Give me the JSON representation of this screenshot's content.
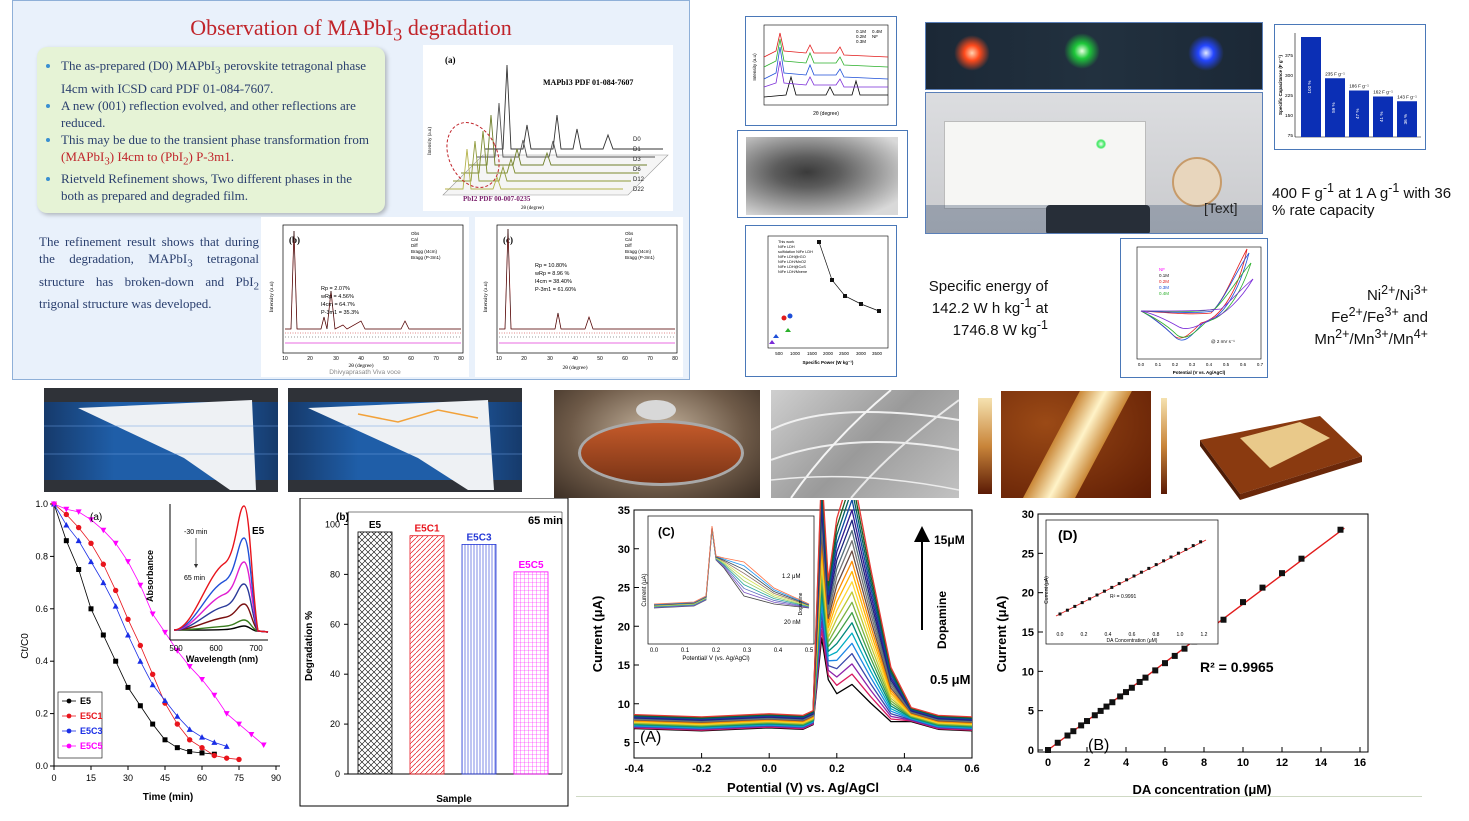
{
  "slide": {
    "title_html": "Observation of MAPbI<sub>3</sub> degradation",
    "bullets_html": [
      "The as-prepared (D0) MAPbI<sub>3</sub> perovskite tetragonal phase I4cm with ICSD card PDF 01-084-7607.",
      "A new (001) reflection evolved, and other reflections are reduced.",
      "This may be due to the transient phase transformation from <span class=\"red\">(MAPbI<sub>3</sub>) I4cm to (PbI<sub>2</sub>) P-3m1</span>.",
      "Rietveld Refinement shows, Two different phases in the both as prepared and degraded film."
    ],
    "paragraph_html": "The refinement result shows that during the degradation, MAPbI<sub>3</sub> tetragonal structure has broken-down and PbI<sub>2</sub> trigonal structure was developed.",
    "xrd_a": {
      "label": "(a)",
      "ref_top": "MAPbI3 PDF 01-084-7607",
      "ref_bottom": "PbI2 PDF 00-007-0235",
      "ylabel": "Intensity (a.u)",
      "xlabel": "2θ (degree)",
      "traces": [
        "D0",
        "D1",
        "D3",
        "D6",
        "D12",
        "D22"
      ]
    },
    "rietveld_b": {
      "label": "(b)",
      "legend": [
        "Obs",
        "Cal",
        "Diff",
        "Bragg (I4cm)",
        "Bragg (P-3m1)"
      ],
      "stats": [
        "Rp = 2.07%",
        "wRp = 4.56%",
        "I4cm = 64.7%",
        "P-3m1 = 35.3%"
      ],
      "xlabel": "2θ (degree)",
      "ylabel": "Intensity (a.u)",
      "xticks": [
        "10",
        "20",
        "30",
        "40",
        "50",
        "60",
        "70",
        "80"
      ],
      "watermark": "Dhivyaprasath Viva voce"
    },
    "rietveld_c": {
      "label": "(c)",
      "legend": [
        "Obs",
        "Cal",
        "Diff",
        "Bragg (I4cm)",
        "Bragg (P-3m1)"
      ],
      "stats": [
        "Rp = 10.80%",
        "wRp = 8.96 %",
        "I4cm = 38.40%",
        "P-3m1 = 61.60%"
      ],
      "xlabel": "2θ (degree)",
      "ylabel": "Intensity (a.u)",
      "xticks": [
        "10",
        "20",
        "30",
        "40",
        "50",
        "60",
        "70",
        "80"
      ]
    }
  },
  "supercap": {
    "text_specific_energy": "Specific energy of 142.2 W h kg<sup>-1</sup> at 1746.8 W kg<sup>-1</sup>",
    "text_capacitance": "400 F g<sup>-1</sup> at 1 A g<sup>-1</sup> with 36 % rate capacity",
    "text_placeholder": "[Text]",
    "text_redox": "Ni<sup>2+</sup>/Ni<sup>3+</sup><br>Fe<sup>2+</sup>/Fe<sup>3+</sup> and<br>Mn<sup>2+</sup>/Mn<sup>3+</sup>/Mn<sup>4+</sup>",
    "bar_chart": {
      "ylabel": "Specific Capacitance (F g⁻¹)",
      "bars": [
        {
          "top": "",
          "pct": "100 %",
          "value": 400
        },
        {
          "top": "235 F g⁻¹",
          "pct": "59 %",
          "value": 235
        },
        {
          "top": "186 F g⁻¹",
          "pct": "47 %",
          "value": 186
        },
        {
          "top": "162 F g⁻¹",
          "pct": "41 %",
          "value": 162
        },
        {
          "top": "143 F g⁻¹",
          "pct": "36 %",
          "value": 143
        }
      ],
      "yticks": [
        "375",
        "300",
        "225",
        "150",
        "75"
      ]
    },
    "ragone": {
      "xlabel": "Specific Power (W kg⁻¹)",
      "xticks": [
        "500",
        "1000",
        "1500",
        "2000",
        "2500",
        "3000",
        "3500"
      ],
      "yticks": [
        "20",
        "40",
        "60",
        "80",
        "100",
        "120",
        "140"
      ],
      "legend": [
        "This work",
        "NiFe LDH",
        "sulfidation NiFe LDH",
        "NiFe LDH@rGO",
        "NiFe LDH/MnO2",
        "NiFe LDH@CoS",
        "NiFe LDH/Mxene"
      ]
    },
    "cv": {
      "legend": [
        "NF",
        "0.1M",
        "0.2M",
        "0.3M",
        "0.4M"
      ],
      "annotation": "@ 2 mV s⁻¹",
      "xlabel": "Potential (V vs. Ag/AgCl)",
      "xticks": [
        "0.0",
        "0.1",
        "0.2",
        "0.3",
        "0.4",
        "0.5",
        "0.6",
        "0.7"
      ]
    },
    "xrd_small": {
      "xlabel": "2θ (degree)",
      "ylabel": "Intensity (a.u)",
      "legend": [
        "0.1M",
        "0.2M",
        "0.3M",
        "0.4M",
        "NF"
      ]
    }
  },
  "degradation_a": {
    "label": "(a)",
    "xlabel": "Time (min)",
    "ylabel": "Ct/C0",
    "xticks": [
      "0",
      "15",
      "30",
      "45",
      "60",
      "75",
      "90"
    ],
    "yticks": [
      "0.0",
      "0.2",
      "0.4",
      "0.6",
      "0.8",
      "1.0"
    ],
    "legend": [
      "E5",
      "E5C1",
      "E5C3",
      "E5C5"
    ],
    "colors": [
      "#000000",
      "#e8141c",
      "#1a2ee6",
      "#ff00ff"
    ],
    "inset": {
      "title": "E5",
      "ylabel": "Absorbance",
      "xlabel": "Wavelength (nm)",
      "xticks": [
        "500",
        "600",
        "700"
      ],
      "arrow_top": "-30 min",
      "arrow_bottom": "65 min"
    }
  },
  "degradation_b": {
    "label": "(b)",
    "annotation": "65 min",
    "xlabel": "Sample",
    "ylabel": "Degradation %",
    "yticks": [
      "0",
      "20",
      "40",
      "60",
      "80",
      "100"
    ],
    "categories": [
      "E5",
      "E5C1",
      "E5C3",
      "E5C5"
    ],
    "values": [
      97,
      95.5,
      92,
      81
    ],
    "colors": [
      "#000000",
      "#e8141c",
      "#2438d6",
      "#ff00ff"
    ]
  },
  "dpv": {
    "label_a": "(A)",
    "label_c": "(C)",
    "xlabel": "Potential (V) vs. Ag/AgCl",
    "ylabel": "Current (μA)",
    "xticks": [
      "-0.4",
      "-0.2",
      "0.0",
      "0.2",
      "0.4",
      "0.6"
    ],
    "yticks": [
      "5",
      "10",
      "15",
      "20",
      "25",
      "30",
      "35"
    ],
    "top_label": "15μM",
    "side_label": "Dopamine",
    "bottom_label": "0.5 μM",
    "inset": {
      "xlabel": "Potential/ V (vs. Ag/AgCl)",
      "ylabel": "Current (μA)",
      "xticks": [
        "0.0",
        "0.1",
        "0.2",
        "0.3",
        "0.4",
        "0.5"
      ],
      "top_label": "1.2 μM",
      "side_label": "Dopamine",
      "bottom_label": "20 nM"
    }
  },
  "calibration": {
    "label_b": "(B)",
    "label_d": "(D)",
    "xlabel": "DA concentration (μM)",
    "ylabel": "Current (μA)",
    "xticks": [
      "0",
      "2",
      "4",
      "6",
      "8",
      "10",
      "12",
      "14",
      "16"
    ],
    "yticks": [
      "0",
      "5",
      "10",
      "15",
      "20",
      "25",
      "30"
    ],
    "r2": "R² = 0.9965",
    "x": [
      0,
      0.5,
      1,
      1.3,
      1.7,
      2,
      2.4,
      2.7,
      3,
      3.3,
      3.7,
      4,
      4.3,
      4.7,
      5,
      5.5,
      6,
      6.5,
      7,
      7.5,
      8,
      8.5,
      9,
      10,
      11,
      12,
      13,
      15
    ],
    "inset": {
      "xlabel": "DA Concentration (μM)",
      "ylabel": "Current (μA)",
      "r2": "R² = 0.9991",
      "xticks": [
        "0.0",
        "0.2",
        "0.4",
        "0.6",
        "0.8",
        "1.0",
        "1.2"
      ]
    }
  }
}
